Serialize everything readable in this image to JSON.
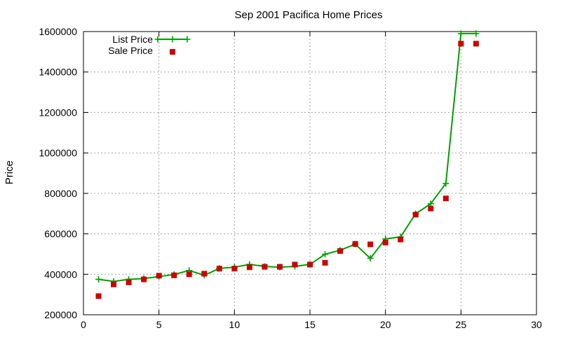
{
  "chart_data": {
    "type": "line",
    "title": "Sep 2001 Pacifica Home Prices",
    "xlabel": "",
    "ylabel": "Price",
    "xlim": [
      0,
      30
    ],
    "ylim": [
      200000,
      1600000
    ],
    "x_ticks": [
      0,
      5,
      10,
      15,
      20,
      25,
      30
    ],
    "y_ticks": [
      200000,
      400000,
      600000,
      800000,
      1000000,
      1200000,
      1400000,
      1600000
    ],
    "grid": true,
    "legend_position": "top-left",
    "series": [
      {
        "name": "List Price",
        "style": "linespoints",
        "marker": "plus",
        "color": "#00a000",
        "x": [
          1,
          2,
          3,
          4,
          5,
          6,
          7,
          8,
          9,
          10,
          11,
          12,
          13,
          14,
          15,
          16,
          17,
          18,
          19,
          20,
          21,
          22,
          23,
          24,
          25,
          26
        ],
        "y": [
          375000,
          365000,
          375000,
          379000,
          389000,
          399000,
          419000,
          395000,
          429000,
          435000,
          449000,
          439000,
          435000,
          439000,
          449000,
          499000,
          519000,
          549000,
          479000,
          575000,
          585000,
          699000,
          749000,
          849000,
          1590000,
          1590000
        ]
      },
      {
        "name": "Sale Price",
        "style": "points",
        "marker": "square",
        "color": "#cc0000",
        "x": [
          1,
          2,
          3,
          4,
          5,
          6,
          7,
          8,
          9,
          10,
          11,
          12,
          13,
          14,
          15,
          16,
          17,
          18,
          19,
          20,
          21,
          22,
          23,
          24,
          25,
          26
        ],
        "y": [
          292000,
          350000,
          360000,
          375000,
          393000,
          395000,
          400000,
          403000,
          428000,
          428000,
          435000,
          437000,
          437000,
          448000,
          448000,
          457000,
          515000,
          550000,
          548000,
          557000,
          572000,
          695000,
          725000,
          775000,
          1540000,
          1540000
        ]
      }
    ]
  }
}
